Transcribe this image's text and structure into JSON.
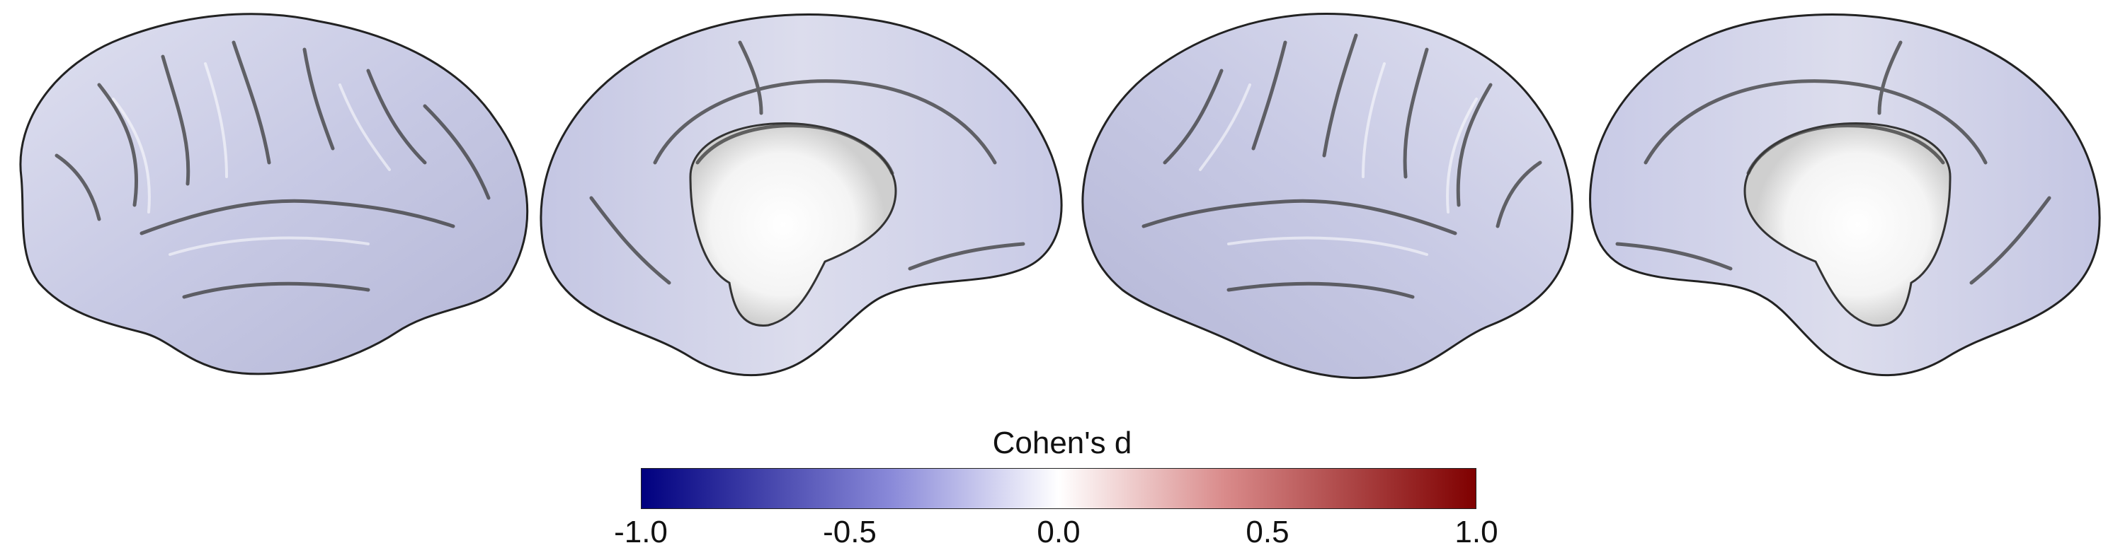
{
  "figure": {
    "panels": [
      {
        "id": "panel-1",
        "view": "left-lateral"
      },
      {
        "id": "panel-2",
        "view": "left-medial"
      },
      {
        "id": "panel-3",
        "view": "right-lateral"
      },
      {
        "id": "panel-4",
        "view": "right-medial"
      }
    ]
  },
  "colorbar": {
    "title": "Cohen's d",
    "min": -1.0,
    "max": 1.0,
    "ticks": [
      {
        "value": -1.0,
        "label": "-1.0"
      },
      {
        "value": -0.5,
        "label": "-0.5"
      },
      {
        "value": 0.0,
        "label": "0.0"
      },
      {
        "value": 0.5,
        "label": "0.5"
      },
      {
        "value": 1.0,
        "label": "1.0"
      }
    ],
    "colors": {
      "low": "#00007f",
      "mid_low": "#8a8ad9",
      "center": "#ffffff",
      "mid_high": "#d98a8a",
      "high": "#7f0000"
    }
  },
  "surface_colors": {
    "cortex_tint": "#c8cae6",
    "cortex_light": "#e6e7f3",
    "medial_wall": "#f2f2f2",
    "sulcus_dark": "#333333"
  }
}
